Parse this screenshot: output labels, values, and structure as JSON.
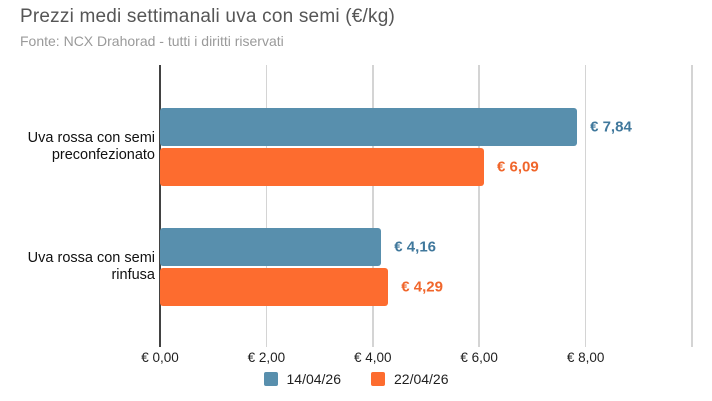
{
  "header": {
    "title": "Prezzi medi settimanali uva con semi (€/kg)",
    "source": "Fonte: NCX Drahorad - tutti i diritti riservati"
  },
  "chart_data": {
    "type": "bar",
    "orientation": "horizontal",
    "title": "Prezzi medi settimanali uva con semi (€/kg)",
    "subtitle": "Fonte: NCX Drahorad - tutti i diritti riservati",
    "categories": [
      "Uva rossa con semi preconfezionato",
      "Uva rossa con semi rinfusa"
    ],
    "category_lines": [
      [
        "Uva rossa con semi",
        "preconfezionato"
      ],
      [
        "Uva rossa con semi",
        "rinfusa"
      ]
    ],
    "series": [
      {
        "name": "14/04/26",
        "color": "#588fad",
        "label_color": "#40789c",
        "values": [
          7.84,
          4.16
        ],
        "labels": [
          "€ 7,84",
          "€ 4,16"
        ]
      },
      {
        "name": "22/04/26",
        "color": "#fd6c2f",
        "label_color": "#f0662b",
        "values": [
          6.09,
          4.29
        ],
        "labels": [
          "€ 6,09",
          "€ 4,29"
        ]
      }
    ],
    "xlabel": "",
    "ylabel": "",
    "xlim": [
      0,
      10
    ],
    "x_ticks": [
      {
        "value": 0,
        "label": "€ 0,00"
      },
      {
        "value": 2,
        "label": "€ 2,00"
      },
      {
        "value": 4,
        "label": "€ 4,00"
      },
      {
        "value": 6,
        "label": "€ 6,00"
      },
      {
        "value": 8,
        "label": "€ 8,00"
      },
      {
        "value": 10,
        "label": ""
      }
    ],
    "grid": true,
    "legend_position": "bottom",
    "colors": {
      "axis": "#424242",
      "grid": "#d4d4d4",
      "tick_text": "#1f1f1f",
      "category_text": "#111111",
      "title": "#565656",
      "subtitle": "#9a9a9a",
      "background": "#ffffff"
    }
  }
}
